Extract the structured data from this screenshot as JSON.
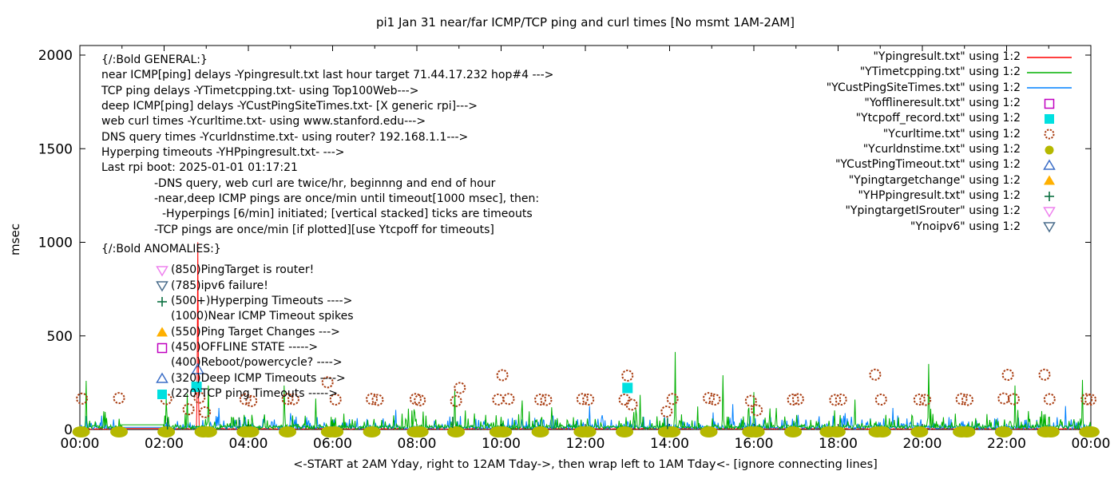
{
  "title": "pi1 Jan 31  near/far ICMP/TCP ping and curl times [No msmt 1AM-2AM]",
  "axes": {
    "ylabel": "msec",
    "xlabel": "<-START at 2AM Yday, right to 12AM Tday->, then wrap left to 1AM Tday<- [ignore connecting lines]",
    "y_ticks": [
      0,
      500,
      1000,
      1500,
      2000
    ],
    "x_tick_labels": [
      "00:00",
      "02:00",
      "04:00",
      "06:00",
      "08:00",
      "10:00",
      "12:00",
      "14:00",
      "16:00",
      "18:00",
      "20:00",
      "22:00",
      "00:00"
    ]
  },
  "general_block": {
    "header": "{/:Bold GENERAL:}",
    "lines": [
      {
        "text": "near ICMP[ping] delays -Ypingresult.txt last hour target 71.44.17.232 hop#4 --->",
        "indent": 0
      },
      {
        "text": "TCP ping delays -YTimetcpping.txt- using Top100Web--->",
        "indent": 0
      },
      {
        "text": "deep ICMP[ping] delays -YCustPingSiteTimes.txt- [X generic rpi]--->",
        "indent": 0
      },
      {
        "text": "web curl times -Ycurltime.txt- using www.stanford.edu--->",
        "indent": 0
      },
      {
        "text": "DNS query times -Ycurldnstime.txt- using router? 192.168.1.1--->",
        "indent": 0
      },
      {
        "text": "Hyperping timeouts -YHPpingresult.txt- --->",
        "indent": 0
      },
      {
        "text": "Last rpi boot: 2025-01-01 01:17:21",
        "indent": 0
      },
      {
        "text": "-DNS query, web curl are twice/hr, beginnng and end of hour",
        "indent": 1
      },
      {
        "text": "-near,deep ICMP pings are once/min until timeout[1000 msec], then:",
        "indent": 1
      },
      {
        "text": "-Hyperpings [6/min] initiated; [vertical stacked] ticks are timeouts",
        "indent": 2
      },
      {
        "text": "-TCP pings are once/min [if plotted][use Ytcpoff for timeouts]",
        "indent": 1
      }
    ]
  },
  "anomalies_block": {
    "header": "{/:Bold ANOMALIES:}",
    "lines": [
      {
        "marker": "triangle-down-open",
        "color": "#ee82ee",
        "text": "(850)PingTarget is router!"
      },
      {
        "marker": "triangle-down-open",
        "color": "#4a6d8c",
        "text": "(785)ipv6 failure!"
      },
      {
        "marker": "plus",
        "color": "#0a7040",
        "text": "(500+)Hyperping Timeouts ---->"
      },
      {
        "marker": null,
        "color": null,
        "text": "(1000)Near ICMP Timeout spikes"
      },
      {
        "marker": "triangle-up-filled",
        "color": "#ffb000",
        "text": "(550)Ping Target Changes --->"
      },
      {
        "marker": "square-open",
        "color": "#c000c0",
        "text": "(450)OFFLINE STATE ----->"
      },
      {
        "marker": null,
        "color": null,
        "text": "(400)Reboot/powercycle? ---->"
      },
      {
        "marker": "triangle-up-open",
        "color": "#3c6ec7",
        "text": "(320)Deep ICMP Timeouts ---->"
      },
      {
        "marker": "square-filled",
        "color": "#00e0e0",
        "text": "(220)TCP ping Timeouts ----->"
      }
    ]
  },
  "legend": {
    "entries": [
      {
        "label": "\"Ypingresult.txt\" using 1:2",
        "marker": "line",
        "color": "#ff0000"
      },
      {
        "label": "\"YTimetcpping.txt\" using 1:2",
        "marker": "line",
        "color": "#00b000"
      },
      {
        "label": "\"YCustPingSiteTimes.txt\" using 1:2",
        "marker": "line",
        "color": "#0080ff"
      },
      {
        "label": "\"Yofflineresult.txt\" using 1:2",
        "marker": "square-open",
        "color": "#c000c0"
      },
      {
        "label": "\"Ytcpoff_record.txt\" using 1:2",
        "marker": "square-filled",
        "color": "#00e0e0"
      },
      {
        "label": "\"Ycurltime.txt\" using 1:2",
        "marker": "circle-open",
        "color": "#a93c10"
      },
      {
        "label": "\"Ycurldnstime.txt\" using 1:2",
        "marker": "circle-filled",
        "color": "#b5b800"
      },
      {
        "label": "\"YCustPingTimeout.txt\" using 1:2",
        "marker": "triangle-up-open",
        "color": "#3c6ec7"
      },
      {
        "label": "\"Ypingtargetchange\" using 1:2",
        "marker": "triangle-up-filled",
        "color": "#ffb000"
      },
      {
        "label": "\"YHPpingresult.txt\" using 1:2",
        "marker": "plus",
        "color": "#0a7040"
      },
      {
        "label": "\"YpingtargetISrouter\" using 1:2",
        "marker": "triangle-down-open",
        "color": "#ee82ee"
      },
      {
        "label": "\"Ynoipv6\" using 1:2",
        "marker": "triangle-down-open",
        "color": "#4a6d8c"
      }
    ]
  },
  "chart_data": {
    "type": "line",
    "x_unit": "hour-of-day",
    "y_unit": "msec",
    "xlim": [
      0,
      24
    ],
    "ylim": [
      0,
      2050
    ],
    "grid": false,
    "no_measurement_window": [
      1,
      2
    ],
    "line_series": [
      {
        "name": "Ypingresult.txt",
        "color": "#ff0000",
        "seed": 101,
        "baseline": 1,
        "noise": 5,
        "spike_chance": 0,
        "spike_amp": 0,
        "flat_value": 5,
        "spikes": [
          [
            2.8,
            1000
          ]
        ]
      },
      {
        "name": "YCustPingSiteTimes.txt",
        "color": "#0080ff",
        "seed": 202,
        "baseline": 2,
        "noise": 16,
        "spike_chance": 0.32,
        "spike_amp": 80,
        "flat_value": 12,
        "spikes": [
          [
            3.3,
            115
          ],
          [
            7.5,
            105
          ],
          [
            12.1,
            125
          ],
          [
            15.5,
            135
          ],
          [
            19.3,
            115
          ],
          [
            23.4,
            125
          ]
        ]
      },
      {
        "name": "YTimetcpping.txt",
        "color": "#00b000",
        "seed": 303,
        "baseline": 2,
        "noise": 20,
        "spike_chance": 0.28,
        "spike_amp": 115,
        "flat_value": 25,
        "spikes": [
          [
            0.15,
            260
          ],
          [
            2.05,
            165
          ],
          [
            2.55,
            190
          ],
          [
            3.05,
            235
          ],
          [
            4.85,
            235
          ],
          [
            5.6,
            165
          ],
          [
            8.9,
            215
          ],
          [
            10.5,
            155
          ],
          [
            13.3,
            185
          ],
          [
            14.14,
            414
          ],
          [
            15.26,
            290
          ],
          [
            16.0,
            200
          ],
          [
            18.4,
            160
          ],
          [
            20.15,
            350
          ],
          [
            22.2,
            235
          ],
          [
            23.8,
            265
          ]
        ]
      }
    ],
    "scatter_series": [
      {
        "name": "Ycurltime.txt",
        "marker": "circle-open",
        "color": "#a93c10",
        "points": [
          [
            0.05,
            165
          ],
          [
            0.93,
            168
          ],
          [
            2.05,
            162
          ],
          [
            2.58,
            108
          ],
          [
            2.84,
            170
          ],
          [
            2.97,
            92
          ],
          [
            3.93,
            162
          ],
          [
            4.07,
            152
          ],
          [
            4.93,
            163
          ],
          [
            5.07,
            162
          ],
          [
            5.88,
            252
          ],
          [
            6.07,
            160
          ],
          [
            6.93,
            163
          ],
          [
            7.07,
            158
          ],
          [
            7.97,
            163
          ],
          [
            8.07,
            156
          ],
          [
            8.93,
            152
          ],
          [
            9.02,
            222
          ],
          [
            9.93,
            160
          ],
          [
            10.03,
            290
          ],
          [
            10.18,
            163
          ],
          [
            10.93,
            160
          ],
          [
            11.07,
            158
          ],
          [
            11.93,
            163
          ],
          [
            12.07,
            160
          ],
          [
            12.93,
            160
          ],
          [
            13.0,
            288
          ],
          [
            13.1,
            133
          ],
          [
            13.93,
            96
          ],
          [
            14.07,
            163
          ],
          [
            14.93,
            168
          ],
          [
            15.07,
            160
          ],
          [
            15.93,
            153
          ],
          [
            16.07,
            103
          ],
          [
            16.93,
            160
          ],
          [
            17.05,
            162
          ],
          [
            17.93,
            158
          ],
          [
            18.07,
            160
          ],
          [
            18.88,
            293
          ],
          [
            19.02,
            160
          ],
          [
            19.93,
            160
          ],
          [
            20.07,
            158
          ],
          [
            20.93,
            163
          ],
          [
            21.07,
            158
          ],
          [
            21.93,
            166
          ],
          [
            22.03,
            292
          ],
          [
            22.17,
            162
          ],
          [
            22.9,
            293
          ],
          [
            23.02,
            162
          ],
          [
            23.9,
            162
          ],
          [
            23.99,
            160
          ]
        ]
      },
      {
        "name": "Ycurldnstime.txt",
        "marker": "ellipse-filled",
        "color": "#b5b800",
        "points": [
          [
            0.03,
            0
          ],
          [
            0.93,
            0
          ],
          [
            2.05,
            0
          ],
          [
            2.93,
            0
          ],
          [
            3.05,
            0
          ],
          [
            3.93,
            0
          ],
          [
            4.05,
            0
          ],
          [
            4.93,
            0
          ],
          [
            5.93,
            0
          ],
          [
            6.05,
            0
          ],
          [
            6.93,
            0
          ],
          [
            7.97,
            0
          ],
          [
            8.07,
            0
          ],
          [
            8.93,
            0
          ],
          [
            9.93,
            0
          ],
          [
            10.05,
            0
          ],
          [
            10.93,
            0
          ],
          [
            11.93,
            0
          ],
          [
            12.05,
            0
          ],
          [
            12.93,
            0
          ],
          [
            13.93,
            0
          ],
          [
            14.05,
            0
          ],
          [
            14.93,
            0
          ],
          [
            15.93,
            0
          ],
          [
            16.05,
            0
          ],
          [
            16.93,
            0
          ],
          [
            17.77,
            0
          ],
          [
            17.97,
            0
          ],
          [
            18.93,
            0
          ],
          [
            19.05,
            0
          ],
          [
            19.93,
            0
          ],
          [
            20.93,
            0
          ],
          [
            21.05,
            0
          ],
          [
            21.93,
            0
          ],
          [
            22.93,
            0
          ],
          [
            23.05,
            0
          ],
          [
            23.93,
            0
          ],
          [
            24.0,
            0
          ]
        ]
      },
      {
        "name": "Ytcpoff_record.txt",
        "marker": "square-filled",
        "color": "#00e0e0",
        "points": [
          [
            2.77,
            228
          ],
          [
            13.0,
            222
          ]
        ]
      },
      {
        "name": "YCustPingTimeout.txt",
        "marker": "triangle-up-open",
        "color": "#3c6ec7",
        "points": [
          [
            2.8,
            320
          ]
        ]
      },
      {
        "name": "YHPpingresult.txt",
        "marker": "vtick",
        "color": "#0a7040",
        "points": [
          [
            2.08,
            30
          ],
          [
            3.78,
            35
          ],
          [
            8.85,
            38
          ],
          [
            13.95,
            32
          ]
        ]
      }
    ]
  }
}
